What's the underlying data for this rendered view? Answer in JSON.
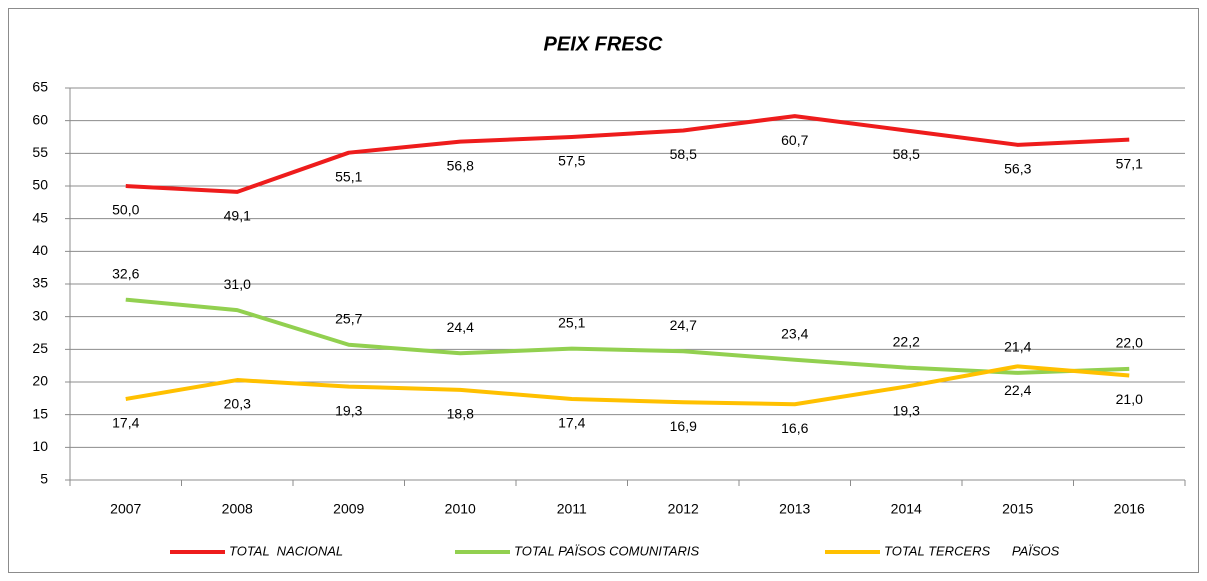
{
  "chart_data": {
    "type": "line",
    "title": "PEIX FRESC",
    "categories": [
      "2007",
      "2008",
      "2009",
      "2010",
      "2011",
      "2012",
      "2013",
      "2014",
      "2015",
      "2016"
    ],
    "series": [
      {
        "name": "TOTAL  NACIONAL",
        "color": "#ee1c1c",
        "values": [
          50.0,
          49.1,
          55.1,
          56.8,
          57.5,
          58.5,
          60.7,
          58.5,
          56.3,
          57.1
        ],
        "value_labels": [
          "50,0",
          "49,1",
          "55,1",
          "56,8",
          "57,5",
          "58,5",
          "60,7",
          "58,5",
          "56,3",
          "57,1"
        ]
      },
      {
        "name": "TOTAL PAÏSOS COMUNITARIS",
        "color": "#92d050",
        "values": [
          32.6,
          31.0,
          25.7,
          24.4,
          25.1,
          24.7,
          23.4,
          22.2,
          21.4,
          22.0
        ],
        "value_labels": [
          "32,6",
          "31,0",
          "25,7",
          "24,4",
          "25,1",
          "24,7",
          "23,4",
          "22,2",
          "21,4",
          "22,0"
        ]
      },
      {
        "name": "TOTAL TERCERS      PAÏSOS",
        "color": "#ffc000",
        "values": [
          17.4,
          20.3,
          19.3,
          18.8,
          17.4,
          16.9,
          16.6,
          19.3,
          22.4,
          21.0
        ],
        "value_labels": [
          "17,4",
          "20,3",
          "19,3",
          "18,8",
          "17,4",
          "16,9",
          "16,6",
          "19,3",
          "22,4",
          "21,0"
        ]
      }
    ],
    "ylim": [
      5,
      65
    ],
    "yticks": [
      5,
      10,
      15,
      20,
      25,
      30,
      35,
      40,
      45,
      50,
      55,
      60,
      65
    ],
    "grid": true,
    "legend": "bottom"
  }
}
